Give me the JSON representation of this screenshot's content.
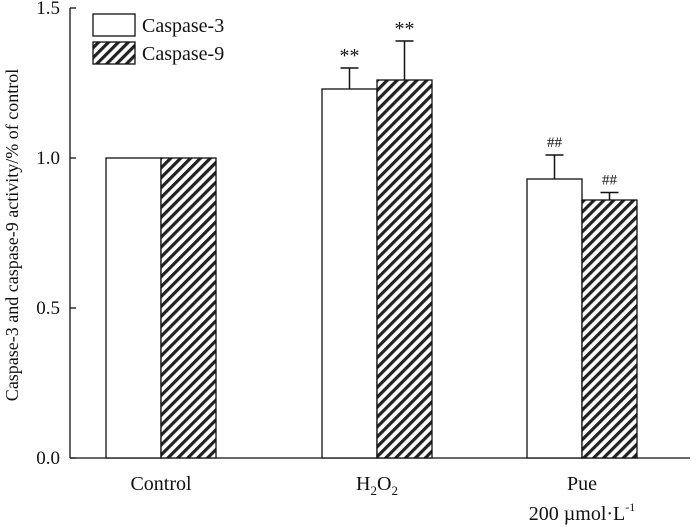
{
  "chart_data": {
    "type": "bar",
    "categories": [
      "Control",
      "H2O2",
      "Pue 200 µmol·L-1"
    ],
    "category_labels": {
      "control": "Control",
      "h2o2": {
        "base": "H",
        "sub1": "2",
        "mid": "O",
        "sub2": "2"
      },
      "pue": {
        "line1": "Pue",
        "line2": "200 µmol·L",
        "sup": "-1"
      }
    },
    "series": [
      {
        "name": "Caspase-3",
        "values": [
          1.0,
          1.23,
          0.93
        ],
        "errors": [
          0.0,
          0.07,
          0.08
        ],
        "fill": "white"
      },
      {
        "name": "Caspase-9",
        "values": [
          1.0,
          1.26,
          0.86
        ],
        "errors": [
          0.0,
          0.13,
          0.025
        ],
        "fill": "hatched"
      }
    ],
    "annotations": [
      {
        "series": 0,
        "category": 1,
        "text": "**"
      },
      {
        "series": 1,
        "category": 1,
        "text": "**"
      },
      {
        "series": 0,
        "category": 2,
        "text": "##"
      },
      {
        "series": 1,
        "category": 2,
        "text": "##"
      }
    ],
    "ylabel": "Caspase-3 and caspase-9 activity/% of control",
    "xlabel": "",
    "ylim": [
      0.0,
      1.5
    ],
    "yticks": [
      0.0,
      0.5,
      1.0,
      1.5
    ],
    "ytick_labels": [
      "0.0",
      "0.5",
      "1.0",
      "1.5"
    ],
    "legend_position": "top-left",
    "grid": false
  }
}
